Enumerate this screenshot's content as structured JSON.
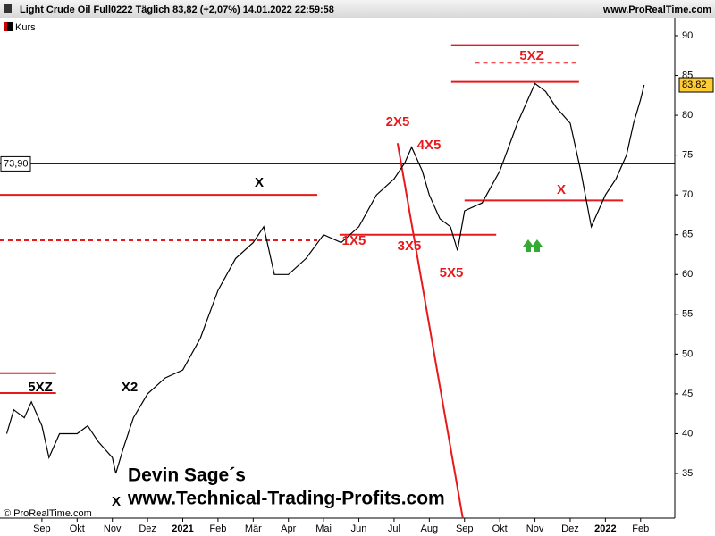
{
  "chart_data": {
    "type": "line",
    "title": "Light Crude Oil Full0222 Täglich 83,82 (+2,07%) 14.01.2022 22:59:58",
    "source": "www.ProRealTime.com",
    "legend_label": "Kurs",
    "copyright": "© ProRealTime.com",
    "watermark": [
      "Devin Sage´s",
      "www.Technical-Trading-Profits.com"
    ],
    "x": [
      -1.0,
      -0.8,
      -0.5,
      -0.3,
      0,
      0.2,
      0.5,
      1,
      1.3,
      1.6,
      2,
      2.1,
      2.3,
      2.6,
      3,
      3.5,
      4,
      4.5,
      5,
      5.5,
      6,
      6.3,
      6.6,
      7,
      7.5,
      8,
      8.5,
      9,
      9.5,
      10,
      10.3,
      10.5,
      10.8,
      11,
      11.3,
      11.6,
      11.8,
      12,
      12.5,
      13,
      13.5,
      13.8,
      14,
      14.3,
      14.6,
      15,
      15.3,
      15.6,
      15.8,
      16,
      16.3,
      16.6,
      16.8,
      17.0,
      17.1
    ],
    "series": [
      {
        "name": "Kurs",
        "color": "#000000",
        "values": [
          40,
          43,
          42,
          44,
          41,
          37,
          40,
          40,
          41,
          39,
          37,
          35,
          38,
          42,
          45,
          47,
          48,
          52,
          58,
          62,
          64,
          66,
          60,
          60,
          62,
          65,
          64,
          66,
          70,
          72,
          74,
          76,
          73,
          70,
          67,
          66,
          63,
          68,
          69,
          73,
          79,
          82,
          84,
          83,
          81,
          79,
          73,
          66,
          68,
          70,
          72,
          75,
          79,
          82,
          83.82
        ]
      }
    ],
    "last_price": {
      "value": 83.82,
      "label": "83,82"
    },
    "reference_line": {
      "value": 73.9,
      "label": "73,90"
    },
    "xlim": [
      -1.19,
      17.97
    ],
    "ylim": [
      29.39,
      92.24
    ],
    "xticks": [
      {
        "value": 0,
        "label": "Sep"
      },
      {
        "value": 1,
        "label": "Okt"
      },
      {
        "value": 2,
        "label": "Nov"
      },
      {
        "value": 3,
        "label": "Dez"
      },
      {
        "value": 4,
        "label": "2021"
      },
      {
        "value": 5,
        "label": "Feb"
      },
      {
        "value": 6,
        "label": "Mär"
      },
      {
        "value": 7,
        "label": "Apr"
      },
      {
        "value": 8,
        "label": "Mai"
      },
      {
        "value": 9,
        "label": "Jun"
      },
      {
        "value": 10,
        "label": "Jul"
      },
      {
        "value": 11,
        "label": "Aug"
      },
      {
        "value": 12,
        "label": "Sep"
      },
      {
        "value": 13,
        "label": "Okt"
      },
      {
        "value": 14,
        "label": "Nov"
      },
      {
        "value": 15,
        "label": "Dez"
      },
      {
        "value": 16,
        "label": "2022"
      },
      {
        "value": 17,
        "label": "Feb"
      }
    ],
    "yticks": [
      35,
      40,
      45,
      50,
      55,
      60,
      65,
      70,
      75,
      80,
      85,
      90
    ],
    "levels": [
      {
        "value": 70,
        "from": -1.19,
        "to": 7.82,
        "dashed": false
      },
      {
        "value": 64.3,
        "from": -1.19,
        "to": 7.82,
        "dashed": true
      },
      {
        "value": 65,
        "from": 8.45,
        "to": 12.9,
        "dashed": false
      },
      {
        "value": 84.2,
        "from": 11.62,
        "to": 15.25,
        "dashed": false
      },
      {
        "value": 88.8,
        "from": 11.62,
        "to": 15.25,
        "dashed": false
      },
      {
        "value": 86.6,
        "from": 12.3,
        "to": 15.25,
        "dashed": true
      },
      {
        "value": 69.3,
        "from": 12.0,
        "to": 16.5,
        "dashed": false
      },
      {
        "value": 47.6,
        "from": -1.19,
        "to": 0.4,
        "dashed": false
      },
      {
        "value": 45.1,
        "from": -1.19,
        "to": 0.4,
        "dashed": false
      }
    ],
    "trend_line": {
      "x": [
        10.1,
        11.95
      ],
      "y": [
        76.5,
        29.4
      ]
    },
    "level_color": "#e8191c",
    "annotations": [
      {
        "text": "5XZ",
        "color": "#e8191c"
      },
      {
        "text": "2X5",
        "color": "#e8191c"
      },
      {
        "text": "4X5",
        "color": "#e8191c"
      },
      {
        "text": "X",
        "color": "#e8191c"
      },
      {
        "text": "1X5",
        "color": "#e8191c"
      },
      {
        "text": "3X5",
        "color": "#e8191c"
      },
      {
        "text": "5X5",
        "color": "#e8191c"
      },
      {
        "text": "X",
        "color": "#000000"
      },
      {
        "text": "5XZ",
        "color": "#000000"
      },
      {
        "text": "X2",
        "color": "#000000"
      },
      {
        "text": "X",
        "color": "#000000"
      }
    ]
  }
}
